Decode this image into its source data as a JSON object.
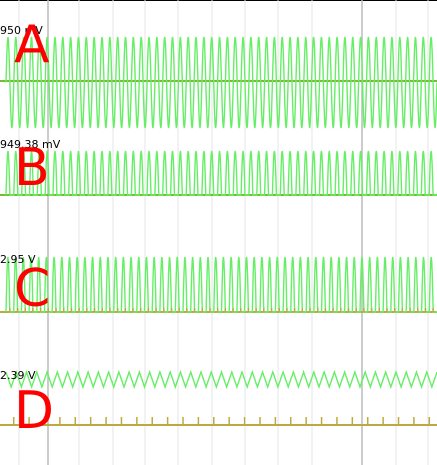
{
  "chart_data": [
    {
      "type": "line",
      "channel_letter": "A",
      "scale_label": "950 mV",
      "colors": {
        "trace": "#66ee66",
        "baseline": "#77bb33"
      },
      "waveform": "dense sine oscillation about the baseline",
      "cycles": 55
    },
    {
      "type": "line",
      "channel_letter": "B",
      "scale_label": "949.38 mV",
      "colors": {
        "trace": "#66ee66",
        "baseline": "#77bb33"
      },
      "waveform": "rectified pulse train (half-wave) above the baseline",
      "cycles": 55
    },
    {
      "type": "line",
      "channel_letter": "C",
      "scale_label": "2.95 V",
      "colors": {
        "trace": "#66ee66",
        "baseline": "#bbaa44"
      },
      "waveform": "rectified pulse train with tick marks at baseline",
      "cycles": 56
    },
    {
      "type": "line",
      "channel_letter": "D",
      "scale_label": "2.39 V",
      "colors": {
        "trace": "#66ee66",
        "baseline": "#bbaa44"
      },
      "waveform": "sawtooth/triangle ripple near the top with sparse ticks at baseline",
      "cycles": 42
    }
  ],
  "grid": {
    "major_color": "#bbbbbb",
    "minor_color": "#e6e6e6"
  }
}
